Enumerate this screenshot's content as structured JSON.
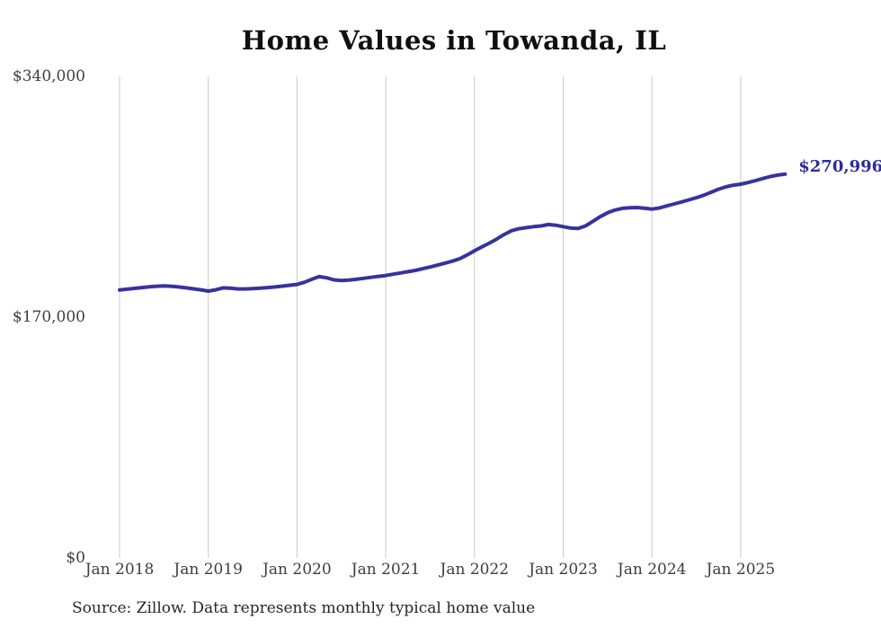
{
  "title": "Home Values in Towanda, IL",
  "source_note": "Source: Zillow. Data represents monthly typical home value",
  "end_label": "$270,996",
  "colors": {
    "line": "#37329f",
    "end_label": "#2e2b9c",
    "gridline": "#cbcbcb",
    "axis_text": "#3e3e3e",
    "title_text": "#0f0f0f",
    "source_text": "#262626",
    "background": "#ffffff"
  },
  "chart_data": {
    "type": "line",
    "title": "Home Values in Towanda, IL",
    "xlabel": "",
    "ylabel": "",
    "ylim": [
      0,
      340000
    ],
    "y_ticks": [
      0,
      170000,
      340000
    ],
    "y_tick_labels": [
      "$0",
      "$170,000",
      "$340,000"
    ],
    "x_tick_labels": [
      "Jan 2018",
      "Jan 2019",
      "Jan 2020",
      "Jan 2021",
      "Jan 2022",
      "Jan 2023",
      "Jan 2024",
      "Jan 2025"
    ],
    "grid": "vertical-only",
    "legend": "none",
    "last_value": 270996,
    "last_value_label": "$270,996",
    "series": [
      {
        "name": "Monthly typical home value",
        "months": [
          "2018-01",
          "2018-02",
          "2018-03",
          "2018-04",
          "2018-05",
          "2018-06",
          "2018-07",
          "2018-08",
          "2018-09",
          "2018-10",
          "2018-11",
          "2018-12",
          "2019-01",
          "2019-02",
          "2019-03",
          "2019-04",
          "2019-05",
          "2019-06",
          "2019-07",
          "2019-08",
          "2019-09",
          "2019-10",
          "2019-11",
          "2019-12",
          "2020-01",
          "2020-02",
          "2020-03",
          "2020-04",
          "2020-05",
          "2020-06",
          "2020-07",
          "2020-08",
          "2020-09",
          "2020-10",
          "2020-11",
          "2020-12",
          "2021-01",
          "2021-02",
          "2021-03",
          "2021-04",
          "2021-05",
          "2021-06",
          "2021-07",
          "2021-08",
          "2021-09",
          "2021-10",
          "2021-11",
          "2021-12",
          "2022-01",
          "2022-02",
          "2022-03",
          "2022-04",
          "2022-05",
          "2022-06",
          "2022-07",
          "2022-08",
          "2022-09",
          "2022-10",
          "2022-11",
          "2022-12",
          "2023-01",
          "2023-02",
          "2023-03",
          "2023-04",
          "2023-05",
          "2023-06",
          "2023-07",
          "2023-08",
          "2023-09",
          "2023-10",
          "2023-11",
          "2023-12",
          "2024-01",
          "2024-02",
          "2024-03",
          "2024-04",
          "2024-05",
          "2024-06",
          "2024-07",
          "2024-08",
          "2024-09",
          "2024-10",
          "2024-11",
          "2024-12",
          "2025-01",
          "2025-02",
          "2025-03",
          "2025-04",
          "2025-05",
          "2025-06",
          "2025-07"
        ],
        "values": [
          189200,
          189700,
          190300,
          190900,
          191400,
          191800,
          192000,
          191800,
          191300,
          190700,
          190000,
          189300,
          188400,
          189300,
          190700,
          190400,
          189900,
          189900,
          190200,
          190500,
          190900,
          191300,
          191900,
          192500,
          193100,
          194600,
          196800,
          198600,
          197800,
          196300,
          195900,
          196200,
          196700,
          197400,
          198100,
          198800,
          199400,
          200300,
          201200,
          202100,
          203000,
          204200,
          205400,
          206700,
          208100,
          209500,
          211200,
          213900,
          216900,
          219600,
          222300,
          225100,
          228300,
          231000,
          232400,
          233200,
          233900,
          234400,
          235400,
          234900,
          233900,
          232900,
          232600,
          234400,
          237600,
          240900,
          243700,
          245600,
          246800,
          247200,
          247400,
          246900,
          246300,
          247100,
          248500,
          249900,
          251300,
          252800,
          254300,
          256100,
          258200,
          260300,
          262000,
          263200,
          263900,
          265000,
          266400,
          267900,
          269300,
          270300,
          270996
        ]
      }
    ]
  }
}
